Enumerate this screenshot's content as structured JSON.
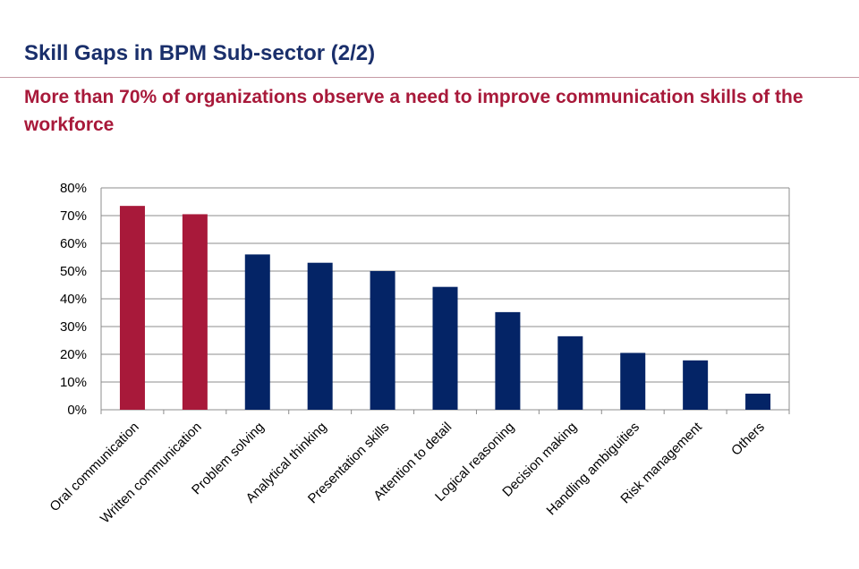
{
  "page": {
    "title": "Skill Gaps in BPM Sub-sector (2/2)",
    "subtitle": "More than 70%  of organizations observe a need to improve communication skills of the workforce"
  },
  "colors": {
    "title": "#1a2f6b",
    "subtitle": "#a8193a",
    "highlight_bar": "#a8193a",
    "default_bar": "#042466",
    "gridline": "#8c8c8c"
  },
  "chart_data": {
    "type": "bar",
    "title": "",
    "xlabel": "",
    "ylabel": "",
    "categories": [
      "Oral communication",
      "Written communication",
      "Problem solving",
      "Analytical thinking",
      "Presentation skills",
      "Attention to detail",
      "Logical reasoning",
      "Decision making",
      "Handling ambiguities",
      "Risk management",
      "Others"
    ],
    "values": [
      0.735,
      0.705,
      0.56,
      0.53,
      0.5,
      0.443,
      0.352,
      0.265,
      0.205,
      0.178,
      0.058
    ],
    "highlighted": [
      true,
      true,
      false,
      false,
      false,
      false,
      false,
      false,
      false,
      false,
      false
    ],
    "ylim": [
      0,
      0.8
    ],
    "yticks": [
      0,
      0.1,
      0.2,
      0.3,
      0.4,
      0.5,
      0.6,
      0.7,
      0.8
    ],
    "ytick_labels": [
      "0%",
      "10%",
      "20%",
      "30%",
      "40%",
      "50%",
      "60%",
      "70%",
      "80%"
    ],
    "grid": true,
    "legend": "none"
  }
}
